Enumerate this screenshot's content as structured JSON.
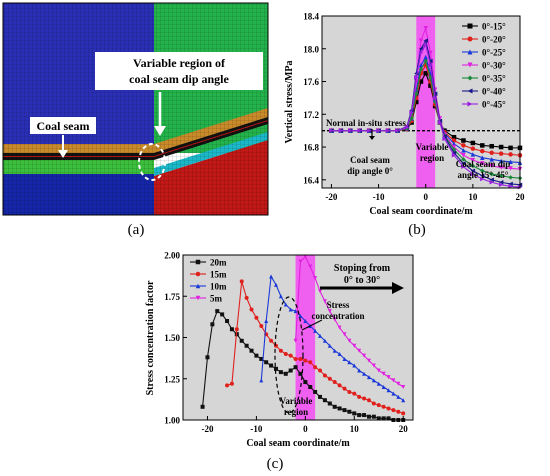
{
  "panels": {
    "a": {
      "caption": "(a)",
      "annotations": {
        "variable_region_line1": "Variable region of",
        "variable_region_line2": "coal seam dip angle",
        "coal_seam": "Coal seam"
      },
      "colors": {
        "blue_block": "#2a2fb6",
        "green_block": "#23b34a",
        "red_block": "#c21818",
        "cyan_band": "#1ab8c8",
        "orange_band": "#c98a2a",
        "black_band": "#111111",
        "dark_blue_bottom": "#1526a8",
        "green_band": "#3cbf3c"
      }
    },
    "b": {
      "caption": "(b)",
      "chart_data": {
        "type": "line",
        "xlabel": "Coal seam coordinate/m",
        "ylabel": "Vertical stress/MPa",
        "xlim": [
          -22,
          20
        ],
        "ylim": [
          16.3,
          18.4
        ],
        "xticks": [
          -20,
          -10,
          0,
          10,
          20
        ],
        "yticks": [
          16.4,
          16.8,
          17.2,
          17.6,
          18.0,
          18.4
        ],
        "reference_line": {
          "y": 17.0,
          "label": "Normal in-situ stress"
        },
        "shaded_region": {
          "x": [
            -2,
            2
          ],
          "label_line1": "Variable",
          "label_line2": "region",
          "color": "#f060f0"
        },
        "annotations": {
          "left_line1": "Coal seam",
          "left_line2": "dip angle 0°",
          "right_line1": "Coal seam dip",
          "right_line2": "angle 15°-45°"
        },
        "legend_position": "top-right",
        "x": [
          -20,
          -18,
          -16,
          -14,
          -12,
          -10,
          -8,
          -6,
          -4,
          -3,
          -2,
          -1,
          0,
          1,
          2,
          3,
          4,
          6,
          8,
          10,
          12,
          14,
          16,
          18,
          20
        ],
        "series": [
          {
            "name": "0°-15°",
            "color": "#000000",
            "marker": "square",
            "values": [
              17.0,
              17.0,
              17.0,
              17.0,
              17.0,
              17.0,
              17.0,
              17.0,
              17.02,
              17.1,
              17.35,
              17.6,
              17.7,
              17.55,
              17.3,
              17.1,
              17.0,
              16.92,
              16.88,
              16.85,
              16.82,
              16.81,
              16.8,
              16.79,
              16.79
            ]
          },
          {
            "name": "0°-20°",
            "color": "#e0201c",
            "marker": "circle",
            "values": [
              17.0,
              17.0,
              17.0,
              17.0,
              17.0,
              17.0,
              17.0,
              17.0,
              17.02,
              17.12,
              17.4,
              17.7,
              17.8,
              17.6,
              17.32,
              17.1,
              16.98,
              16.88,
              16.82,
              16.78,
              16.75,
              16.73,
              16.72,
              16.71,
              16.7
            ]
          },
          {
            "name": "0°-25°",
            "color": "#1a38d8",
            "marker": "triangle-up",
            "values": [
              17.0,
              17.0,
              17.0,
              17.0,
              17.0,
              17.0,
              17.0,
              17.0,
              17.03,
              17.15,
              17.5,
              17.8,
              17.9,
              17.7,
              17.38,
              17.12,
              16.97,
              16.84,
              16.76,
              16.71,
              16.67,
              16.65,
              16.63,
              16.62,
              16.61
            ]
          },
          {
            "name": "0°-30°",
            "color": "#e020e0",
            "marker": "triangle-down",
            "values": [
              17.0,
              17.0,
              17.0,
              17.0,
              17.0,
              17.0,
              17.0,
              17.0,
              17.04,
              17.2,
              17.6,
              18.1,
              18.25,
              17.95,
              17.5,
              17.15,
              16.95,
              16.8,
              16.7,
              16.64,
              16.6,
              16.57,
              16.55,
              16.54,
              16.53
            ]
          },
          {
            "name": "0°-35°",
            "color": "#1a8a3a",
            "marker": "diamond",
            "values": [
              17.0,
              17.0,
              17.0,
              17.0,
              17.0,
              17.0,
              17.0,
              17.0,
              17.03,
              17.15,
              17.45,
              17.75,
              17.85,
              17.65,
              17.35,
              17.1,
              16.94,
              16.77,
              16.65,
              16.57,
              16.51,
              16.47,
              16.45,
              16.43,
              16.42
            ]
          },
          {
            "name": "0°-40°",
            "color": "#1a1a8a",
            "marker": "triangle-left",
            "values": [
              17.0,
              17.0,
              17.0,
              17.0,
              17.0,
              17.0,
              17.0,
              17.0,
              17.05,
              17.25,
              17.7,
              18.0,
              18.1,
              17.85,
              17.45,
              17.12,
              16.93,
              16.73,
              16.6,
              16.51,
              16.45,
              16.4,
              16.37,
              16.35,
              16.34
            ]
          },
          {
            "name": "0°-45°",
            "color": "#9a20e0",
            "marker": "triangle-right",
            "values": [
              17.0,
              17.0,
              17.0,
              17.0,
              17.0,
              17.0,
              17.0,
              17.0,
              17.04,
              17.22,
              17.65,
              17.95,
              18.05,
              17.8,
              17.4,
              17.1,
              16.9,
              16.7,
              16.56,
              16.47,
              16.41,
              16.37,
              16.34,
              16.32,
              16.31
            ]
          }
        ]
      }
    },
    "c": {
      "caption": "(c)",
      "chart_data": {
        "type": "line",
        "xlabel": "Coal seam coordinate/m",
        "ylabel": "Stress concentration factor",
        "xlim": [
          -25,
          22
        ],
        "ylim": [
          1.0,
          2.0
        ],
        "xticks": [
          -20,
          -10,
          0,
          10,
          20
        ],
        "yticks": [
          1.0,
          1.25,
          1.5,
          1.75,
          2.0
        ],
        "shaded_region": {
          "x": [
            -2,
            2
          ],
          "label_line1": "Variable",
          "label_line2": "region",
          "color": "#f060f0"
        },
        "annotations": {
          "stoping_line1": "Stoping from",
          "stoping_line2": "0°  to 30°",
          "stress_line1": "Stress",
          "stress_line2": "concentration"
        },
        "legend_position": "top-left",
        "series": [
          {
            "name": "20m",
            "color": "#111111",
            "marker": "square",
            "x": [
              -21,
              -20,
              -19,
              -18,
              -17,
              -16,
              -15,
              -14,
              -13,
              -12,
              -11,
              -10,
              -9,
              -8,
              -7,
              -6,
              -5,
              -4,
              -3,
              -2,
              -1,
              0,
              1,
              2,
              3,
              4,
              5,
              6,
              7,
              8,
              9,
              10,
              11,
              12,
              13,
              14,
              15,
              16,
              17,
              18,
              19,
              20
            ],
            "values": [
              1.08,
              1.38,
              1.58,
              1.66,
              1.64,
              1.6,
              1.55,
              1.52,
              1.48,
              1.45,
              1.42,
              1.39,
              1.37,
              1.35,
              1.33,
              1.31,
              1.29,
              1.28,
              1.3,
              1.32,
              1.28,
              1.23,
              1.2,
              1.17,
              1.14,
              1.12,
              1.1,
              1.08,
              1.07,
              1.06,
              1.05,
              1.04,
              1.03,
              1.03,
              1.02,
              1.02,
              1.01,
              1.01,
              1.01,
              1.0,
              1.0,
              1.0
            ]
          },
          {
            "name": "15m",
            "color": "#e0201c",
            "marker": "circle",
            "x": [
              -16,
              -15,
              -14,
              -13,
              -12,
              -11,
              -10,
              -9,
              -8,
              -7,
              -6,
              -5,
              -4,
              -3,
              -2,
              -1,
              0,
              1,
              2,
              3,
              4,
              5,
              6,
              7,
              8,
              9,
              10,
              11,
              12,
              13,
              14,
              15,
              16,
              17,
              18,
              19,
              20
            ],
            "values": [
              1.21,
              1.22,
              1.55,
              1.84,
              1.74,
              1.67,
              1.62,
              1.57,
              1.52,
              1.48,
              1.45,
              1.42,
              1.4,
              1.39,
              1.37,
              1.37,
              1.36,
              1.35,
              1.32,
              1.3,
              1.27,
              1.25,
              1.23,
              1.21,
              1.19,
              1.17,
              1.16,
              1.14,
              1.13,
              1.12,
              1.1,
              1.09,
              1.08,
              1.07,
              1.06,
              1.05,
              1.04
            ]
          },
          {
            "name": "10m",
            "color": "#1a38d8",
            "marker": "triangle-up",
            "x": [
              -9,
              -8,
              -7,
              -6,
              -5,
              -4,
              -3,
              -2,
              -1,
              0,
              1,
              2,
              3,
              4,
              5,
              6,
              7,
              8,
              9,
              10,
              11,
              12,
              13,
              14,
              15,
              16,
              17,
              18,
              19,
              20
            ],
            "values": [
              1.24,
              1.6,
              1.87,
              1.82,
              1.75,
              1.7,
              1.67,
              1.66,
              1.63,
              1.6,
              1.57,
              1.54,
              1.51,
              1.48,
              1.45,
              1.42,
              1.4,
              1.37,
              1.35,
              1.33,
              1.3,
              1.28,
              1.26,
              1.24,
              1.22,
              1.2,
              1.18,
              1.16,
              1.14,
              1.12
            ]
          },
          {
            "name": "5m",
            "color": "#e020e0",
            "marker": "triangle-down",
            "x": [
              -2,
              -1,
              0,
              1,
              2,
              3,
              4,
              5,
              6,
              7,
              8,
              9,
              10,
              11,
              12,
              13,
              14,
              15,
              16,
              17,
              18,
              19,
              20
            ],
            "values": [
              1.48,
              1.96,
              1.99,
              1.93,
              1.86,
              1.78,
              1.72,
              1.66,
              1.61,
              1.56,
              1.52,
              1.48,
              1.45,
              1.42,
              1.39,
              1.36,
              1.33,
              1.3,
              1.28,
              1.26,
              1.24,
              1.22,
              1.2
            ]
          }
        ]
      }
    }
  }
}
